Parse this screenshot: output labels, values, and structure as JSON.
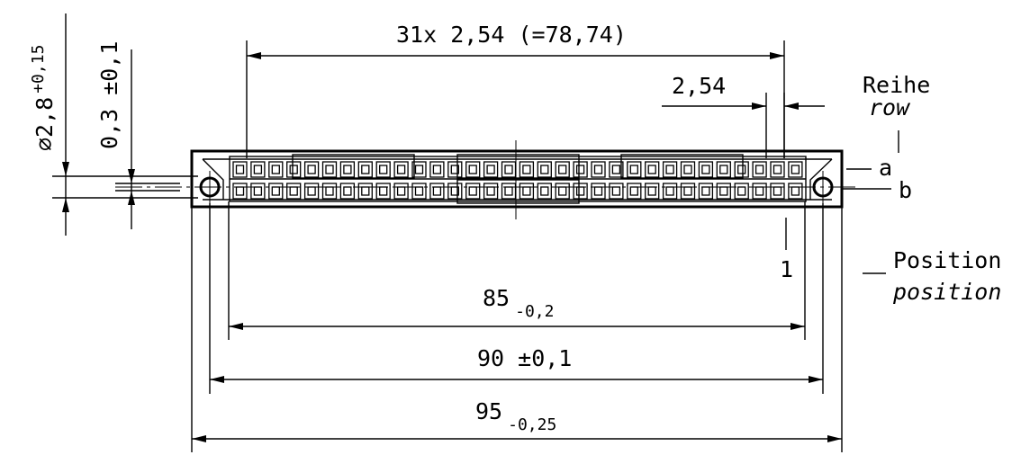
{
  "dims": {
    "pitch_total": "31x 2,54 (=78,74)",
    "pitch": "2,54",
    "hole_dia_main": "⌀2,8",
    "hole_dia_tol": "+0,15",
    "offset": "0,3 ±0,1",
    "d85_main": "85",
    "d85_tol": "-0,2",
    "d90": "90 ±0,1",
    "d95_main": "95",
    "d95_tol": "-0,25"
  },
  "labels": {
    "row_de": "Reihe",
    "row_en": "row",
    "row_a": "a",
    "row_b": "b",
    "pos_1": "1",
    "position_de": "Position",
    "position_en": "position"
  },
  "connector": {
    "contacts_per_row": 32,
    "rows": 2
  }
}
